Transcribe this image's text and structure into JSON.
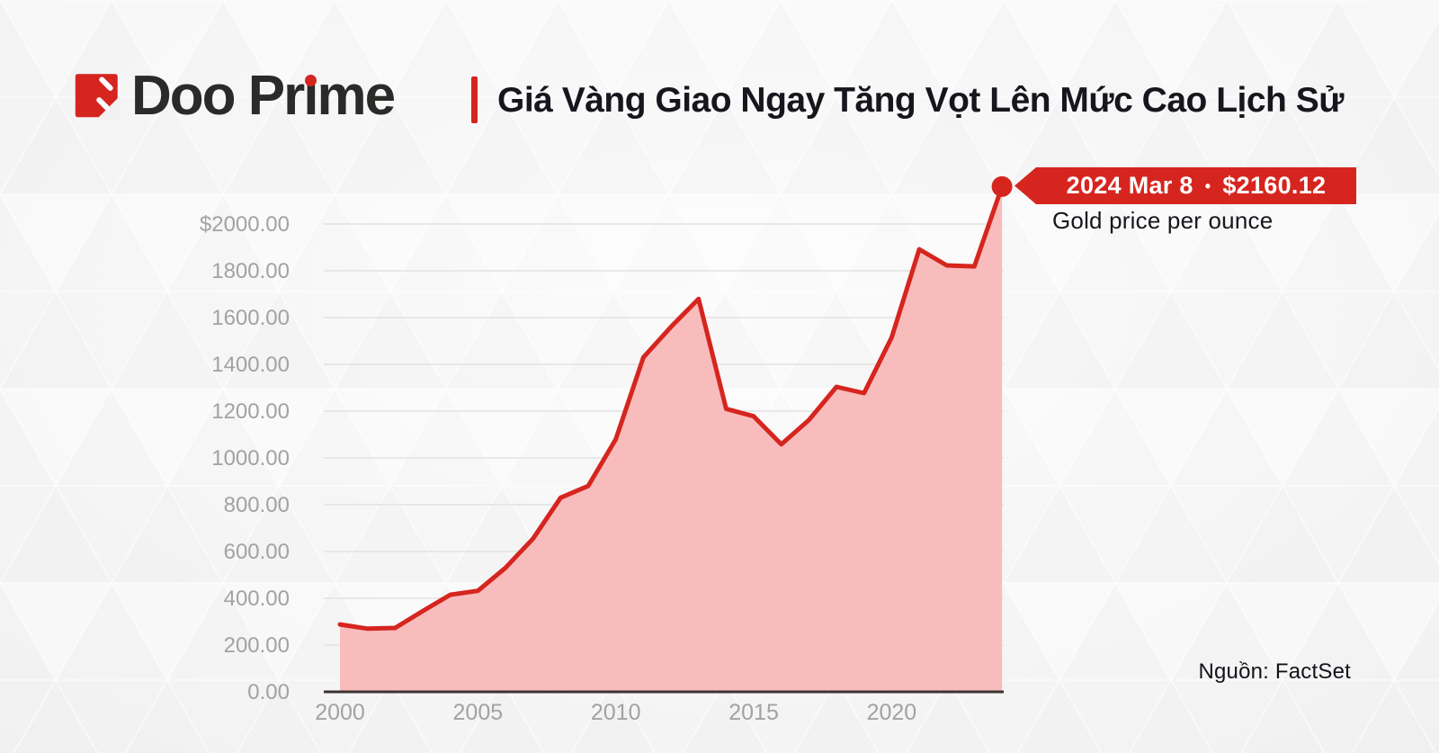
{
  "header": {
    "brand": {
      "name": "Doo Prime",
      "wordmark_pre": "Doo Pr",
      "wordmark_i": "ı",
      "wordmark_post": "me"
    },
    "title": "Giá Vàng Giao Ngay Tăng Vọt Lên Mức Cao Lịch Sử"
  },
  "callout": {
    "date": "2024 Mar 8",
    "separator": "•",
    "price": "$2160.12",
    "subtitle": "Gold price per ounce"
  },
  "source_note": "Nguồn: FactSet",
  "colors": {
    "red": "#d6251f",
    "fill_pink": "#f9bcbc",
    "axis_gray": "#a2a2a4",
    "grid": "#e3e2e2",
    "baseline": "#3a3332",
    "text_dark": "#17161c"
  },
  "chart_data": {
    "type": "area",
    "title": "Giá Vàng Giao Ngay Tăng Vọt Lên Mức Cao Lịch Sử",
    "series_name": "Gold price per ounce (USD)",
    "x": [
      2000,
      2001,
      2002,
      2003,
      2004,
      2005,
      2006,
      2007,
      2008,
      2009,
      2010,
      2011,
      2012,
      2013,
      2014,
      2015,
      2016,
      2017,
      2018,
      2019,
      2020,
      2021,
      2022,
      2023,
      2024
    ],
    "values": [
      288,
      270,
      273,
      345,
      415,
      432,
      530,
      655,
      830,
      880,
      1080,
      1430,
      1560,
      1680,
      1210,
      1178,
      1058,
      1162,
      1304,
      1277,
      1515,
      1892,
      1823,
      1819,
      2160.12
    ],
    "highlight_point": {
      "x": 2024,
      "value": 2160.12,
      "label": "2024 Mar 8 • $2160.12"
    },
    "xlabel": "",
    "ylabel": "",
    "ylim": [
      0,
      2200
    ],
    "xlim": [
      2000,
      2024
    ],
    "y_ticks": [
      "$2000.00",
      "1800.00",
      "1600.00",
      "1400.00",
      "1200.00",
      "1000.00",
      "800.00",
      "600.00",
      "400.00",
      "200.00",
      "0.00"
    ],
    "y_tick_values": [
      2000,
      1800,
      1600,
      1400,
      1200,
      1000,
      800,
      600,
      400,
      200,
      0
    ],
    "x_ticks": [
      "2000",
      "2005",
      "2010",
      "2015",
      "2020"
    ],
    "x_tick_values": [
      2000,
      2005,
      2010,
      2015,
      2020
    ],
    "grid": "horizontal",
    "legend": "none",
    "source": "Nguồn: FactSet"
  }
}
